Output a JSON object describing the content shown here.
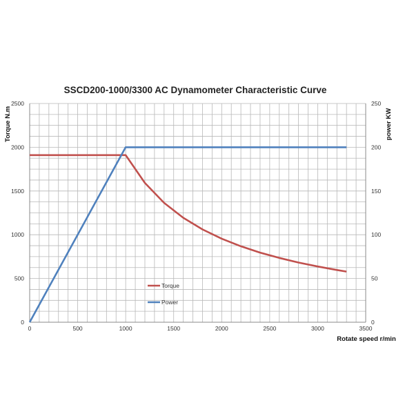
{
  "chart_data": {
    "type": "line",
    "title": "SSCD200-1000/3300 AC Dynamometer Characteristic Curve",
    "xlabel": "Rotate speed r/min",
    "ylabel_left": "Torque N.m",
    "ylabel_right": "power KW",
    "xlim": [
      0,
      3500
    ],
    "ylim_left": [
      0,
      2500
    ],
    "ylim_right": [
      0,
      250
    ],
    "xticks": [
      0,
      500,
      1000,
      1500,
      2000,
      2500,
      3000,
      3500
    ],
    "yticks_left": [
      0,
      500,
      1000,
      1500,
      2000,
      2500
    ],
    "yticks_right": [
      0,
      50,
      100,
      150,
      200,
      250
    ],
    "grid": true,
    "legend_position": "lower-middle",
    "series": [
      {
        "name": "Torque",
        "axis": "left",
        "color": "#c0504d",
        "x": [
          0,
          1000,
          1200,
          1400,
          1600,
          1800,
          2000,
          2200,
          2400,
          2600,
          2800,
          3000,
          3200,
          3300
        ],
        "values": [
          1910,
          1910,
          1592,
          1364,
          1194,
          1061,
          955,
          868,
          796,
          735,
          682,
          637,
          597,
          579
        ]
      },
      {
        "name": "Power",
        "axis": "right",
        "color": "#4f81bd",
        "x": [
          0,
          1000,
          3300
        ],
        "values": [
          0,
          200,
          200
        ]
      }
    ]
  }
}
